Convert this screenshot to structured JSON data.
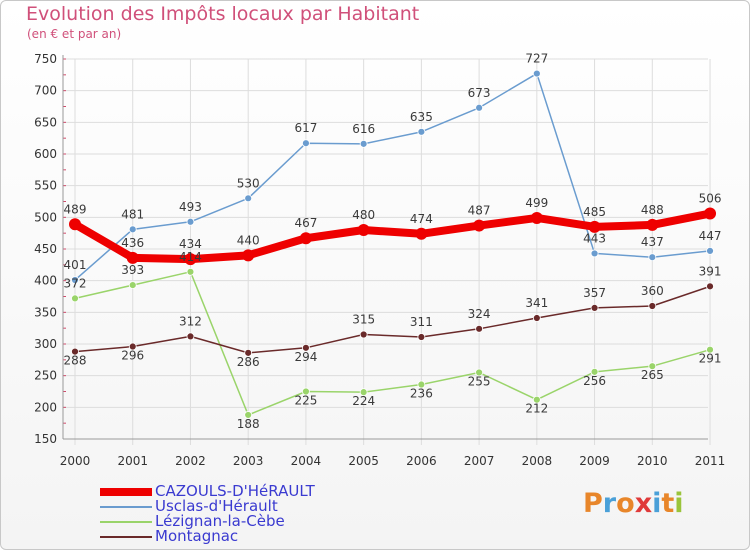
{
  "header": {
    "title": "Evolution des Impôts locaux par Habitant",
    "subtitle": "(en € et par an)"
  },
  "logo": {
    "text": "Proxiti",
    "colors": [
      "#e8862a",
      "#4aa0d8",
      "#e8862a",
      "#e03a3a",
      "#4aa0d8",
      "#e8862a",
      "#9ac43a"
    ]
  },
  "chart_data": {
    "type": "line",
    "title": "Evolution des Impôts locaux par Habitant",
    "subtitle": "(en € et par an)",
    "x": [
      "2000",
      "2001",
      "2002",
      "2003",
      "2004",
      "2005",
      "2006",
      "2007",
      "2008",
      "2009",
      "2010",
      "2011"
    ],
    "ylim": [
      150,
      750
    ],
    "yticks": [
      150,
      200,
      250,
      300,
      350,
      400,
      450,
      500,
      550,
      600,
      650,
      700,
      750
    ],
    "grid": true,
    "legend_position": "bottom",
    "series": [
      {
        "name": "CAZOULS-D'HéRAULT",
        "color": "#ee0000",
        "thick": true,
        "values": [
          489,
          436,
          434,
          440,
          467,
          480,
          474,
          487,
          499,
          485,
          488,
          506
        ]
      },
      {
        "name": "Usclas-d'Hérault",
        "color": "#6a9ccf",
        "thick": false,
        "values": [
          401,
          481,
          493,
          530,
          617,
          616,
          635,
          673,
          727,
          443,
          437,
          447
        ]
      },
      {
        "name": "Lézignan-la-Cèbe",
        "color": "#9ad46a",
        "thick": false,
        "values": [
          372,
          393,
          414,
          188,
          225,
          224,
          236,
          255,
          212,
          256,
          265,
          291
        ]
      },
      {
        "name": "Montagnac",
        "color": "#6a2a2a",
        "thick": false,
        "values": [
          288,
          296,
          312,
          286,
          294,
          315,
          311,
          324,
          341,
          357,
          360,
          391
        ]
      }
    ]
  }
}
